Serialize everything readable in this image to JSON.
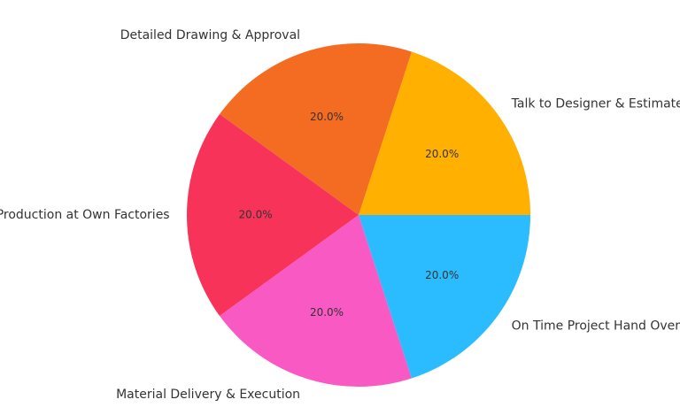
{
  "chart_data": {
    "type": "pie",
    "categories": [
      "Talk to Designer & Estimate",
      "Detailed Drawing & Approval",
      "Production at Own Factories",
      "Material Delivery & Execution",
      "On Time Project Hand Over"
    ],
    "values": [
      20,
      20,
      20,
      20,
      20
    ],
    "value_labels": [
      "20.0%",
      "20.0%",
      "20.0%",
      "20.0%",
      "20.0%"
    ],
    "colors": [
      "#ffb000",
      "#f36c21",
      "#f7335a",
      "#f859c3",
      "#2bbcff"
    ]
  }
}
